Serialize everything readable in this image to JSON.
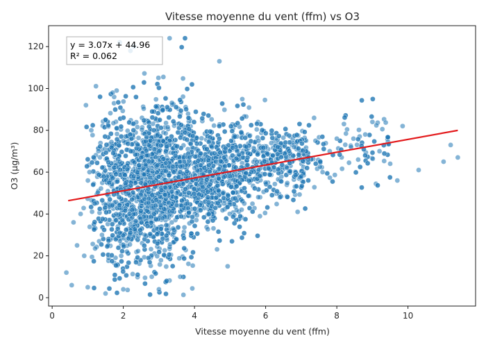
{
  "chart_data": {
    "type": "scatter",
    "title": "Vitesse moyenne du vent (ffm) vs O3",
    "xlabel": "Vitesse moyenne du vent (ffm)",
    "ylabel": "O3 (µg/m³)",
    "xlim": [
      -0.1,
      11.9
    ],
    "ylim": [
      -4,
      130
    ],
    "xticks": [
      0,
      2,
      4,
      6,
      8,
      10
    ],
    "yticks": [
      0,
      20,
      40,
      60,
      80,
      100,
      120
    ],
    "grid": false,
    "legend": "none",
    "point_color": "#1f77b4",
    "point_edge_color": "#ffffff",
    "point_opacity": 0.55,
    "series": [
      {
        "points_note": "dense cloud of ~5000 observations; representative sample below",
        "x": [
          0.4,
          0.55,
          0.6,
          0.7,
          0.8,
          0.9,
          0.95,
          1.0,
          1.05,
          1.1,
          1.2,
          1.3,
          1.4,
          1.5,
          1.6,
          1.7,
          1.8,
          1.9,
          2.0,
          2.1,
          2.2,
          2.3,
          2.4,
          2.5,
          2.6,
          2.7,
          2.8,
          2.9,
          3.0,
          3.1,
          3.2,
          3.3,
          3.4,
          3.5,
          3.6,
          3.8,
          4.0,
          4.2,
          4.4,
          4.6,
          4.8,
          5.0,
          5.2,
          5.4,
          5.6,
          5.8,
          6.0,
          6.2,
          6.4,
          6.6,
          6.8,
          7.0,
          7.2,
          7.4,
          7.6,
          7.8,
          8.0,
          8.2,
          8.4,
          8.6,
          8.8,
          9.0,
          9.2,
          9.5,
          9.7,
          9.85,
          10.3,
          11.0,
          11.2,
          11.4,
          1.9,
          2.3,
          3.3,
          4.7,
          1.5,
          2.0,
          2.8,
          3.0,
          3.6,
          2.2
        ],
        "y": [
          12,
          6,
          36,
          25,
          40,
          20,
          92,
          5,
          60,
          80,
          45,
          70,
          30,
          85,
          55,
          98,
          40,
          65,
          75,
          22,
          35,
          58,
          48,
          67,
          30,
          52,
          62,
          44,
          70,
          38,
          55,
          75,
          33,
          50,
          60,
          45,
          62,
          55,
          40,
          65,
          50,
          58,
          70,
          45,
          60,
          75,
          55,
          68,
          48,
          62,
          72,
          58,
          66,
          75,
          60,
          70,
          76,
          83,
          72,
          66,
          78,
          84,
          70,
          64,
          56,
          82,
          61,
          65,
          73,
          67,
          122,
          120,
          124,
          113,
          2,
          4,
          10,
          4,
          10,
          118
        ]
      }
    ],
    "regression": {
      "slope": 3.07,
      "intercept": 44.96,
      "x_range": [
        0.45,
        11.4
      ],
      "color": "#e31a1c",
      "equation_label": "y = 3.07x + 44.96",
      "r2_label": "R² = 0.062"
    }
  }
}
